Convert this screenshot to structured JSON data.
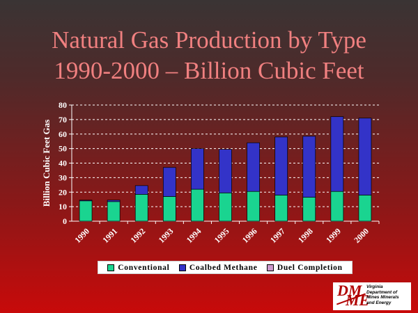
{
  "slide": {
    "title_line1": "Natural Gas Production by Type",
    "title_line2": "1990-2000 – Billion Cubic Feet"
  },
  "logo": {
    "lines": [
      "Virginia",
      "Department of",
      "Mines Minerals",
      "and Energy"
    ],
    "mark": "DMME"
  },
  "colors": {
    "conventional": "#1ad490",
    "coalbed_methane": "#3333c8",
    "duel_completion": "#cc99cc",
    "axis_text": "#ffffff",
    "gridline": "#ffffff"
  },
  "chart_data": {
    "type": "bar",
    "stacked": true,
    "categories": [
      "1990",
      "1991",
      "1992",
      "1993",
      "1994",
      "1995",
      "1996",
      "1997",
      "1998",
      "1999",
      "2000"
    ],
    "series": [
      {
        "name": "Conventional",
        "values": [
          14,
          13.5,
          18.5,
          17,
          22,
          19.5,
          20.5,
          18,
          16.5,
          20.5,
          18
        ]
      },
      {
        "name": "Coalbed Methane",
        "values": [
          0.5,
          1,
          6,
          20,
          28,
          30,
          33.5,
          40,
          42,
          51.5,
          53
        ]
      },
      {
        "name": "Duel Completion",
        "values": [
          0,
          0,
          0,
          0,
          0,
          0,
          0,
          0,
          0,
          0,
          0
        ]
      }
    ],
    "ylabel": "Billion Cubic Feet Gas",
    "ylim": [
      0,
      80
    ],
    "yticks": [
      0,
      10,
      20,
      30,
      40,
      50,
      60,
      70,
      80
    ],
    "grid": true,
    "legend": "bottom"
  }
}
